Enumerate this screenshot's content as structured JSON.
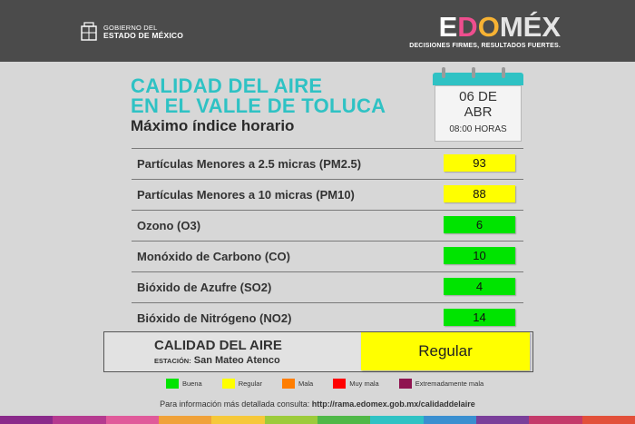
{
  "header": {
    "gov_line1": "GOBIERNO DEL",
    "gov_line2": "ESTADO DE MÉXICO",
    "brand_parts": [
      "E",
      "D",
      "O",
      "MÉX"
    ],
    "brand_tagline": "DECISIONES FIRMES, RESULTADOS FUERTES."
  },
  "title": {
    "line1": "CALIDAD DEL AIRE",
    "line2": "EN EL VALLE DE TOLUCA",
    "line3": "Máximo índice horario"
  },
  "calendar": {
    "day": "06 DE",
    "month": "ABR",
    "hour": "08:00 HORAS"
  },
  "pollutants": [
    {
      "label": "Partículas Menores a 2.5 micras (PM2.5)",
      "value": "93",
      "color": "#ffff00"
    },
    {
      "label": "Partículas Menores a 10 micras (PM10)",
      "value": "88",
      "color": "#ffff00"
    },
    {
      "label": "Ozono (O3)",
      "value": "6",
      "color": "#00e400"
    },
    {
      "label": "Monóxido de Carbono (CO)",
      "value": "10",
      "color": "#00e400"
    },
    {
      "label": "Bióxido de Azufre (SO2)",
      "value": "4",
      "color": "#00e400"
    },
    {
      "label": "Bióxido de Nitrógeno (NO2)",
      "value": "14",
      "color": "#00e400"
    }
  ],
  "summary": {
    "title": "CALIDAD DEL AIRE",
    "station_label": "ESTACIÓN:",
    "station_value": "San Mateo Atenco",
    "quality": "Regular",
    "quality_color": "#ffff00"
  },
  "legend": [
    {
      "label": "Buena",
      "color": "#00e400"
    },
    {
      "label": "Regular",
      "color": "#ffff00"
    },
    {
      "label": "Mala",
      "color": "#ff7e00"
    },
    {
      "label": "Muy mala",
      "color": "#ff0000"
    },
    {
      "label": "Extremadamente mala",
      "color": "#8f1450"
    }
  ],
  "footer": {
    "prefix": "Para información más detallada consulta:",
    "url": "http://rama.edomex.gob.mx/calidaddelaire"
  },
  "stripe_colors": [
    "#8a2a8a",
    "#b53a8f",
    "#e05a9a",
    "#f0a23a",
    "#f6c83a",
    "#9ccb3b",
    "#4fb848",
    "#2fc2c4",
    "#3a8fd0",
    "#7a3f9a",
    "#c43a6a",
    "#e2503a"
  ]
}
